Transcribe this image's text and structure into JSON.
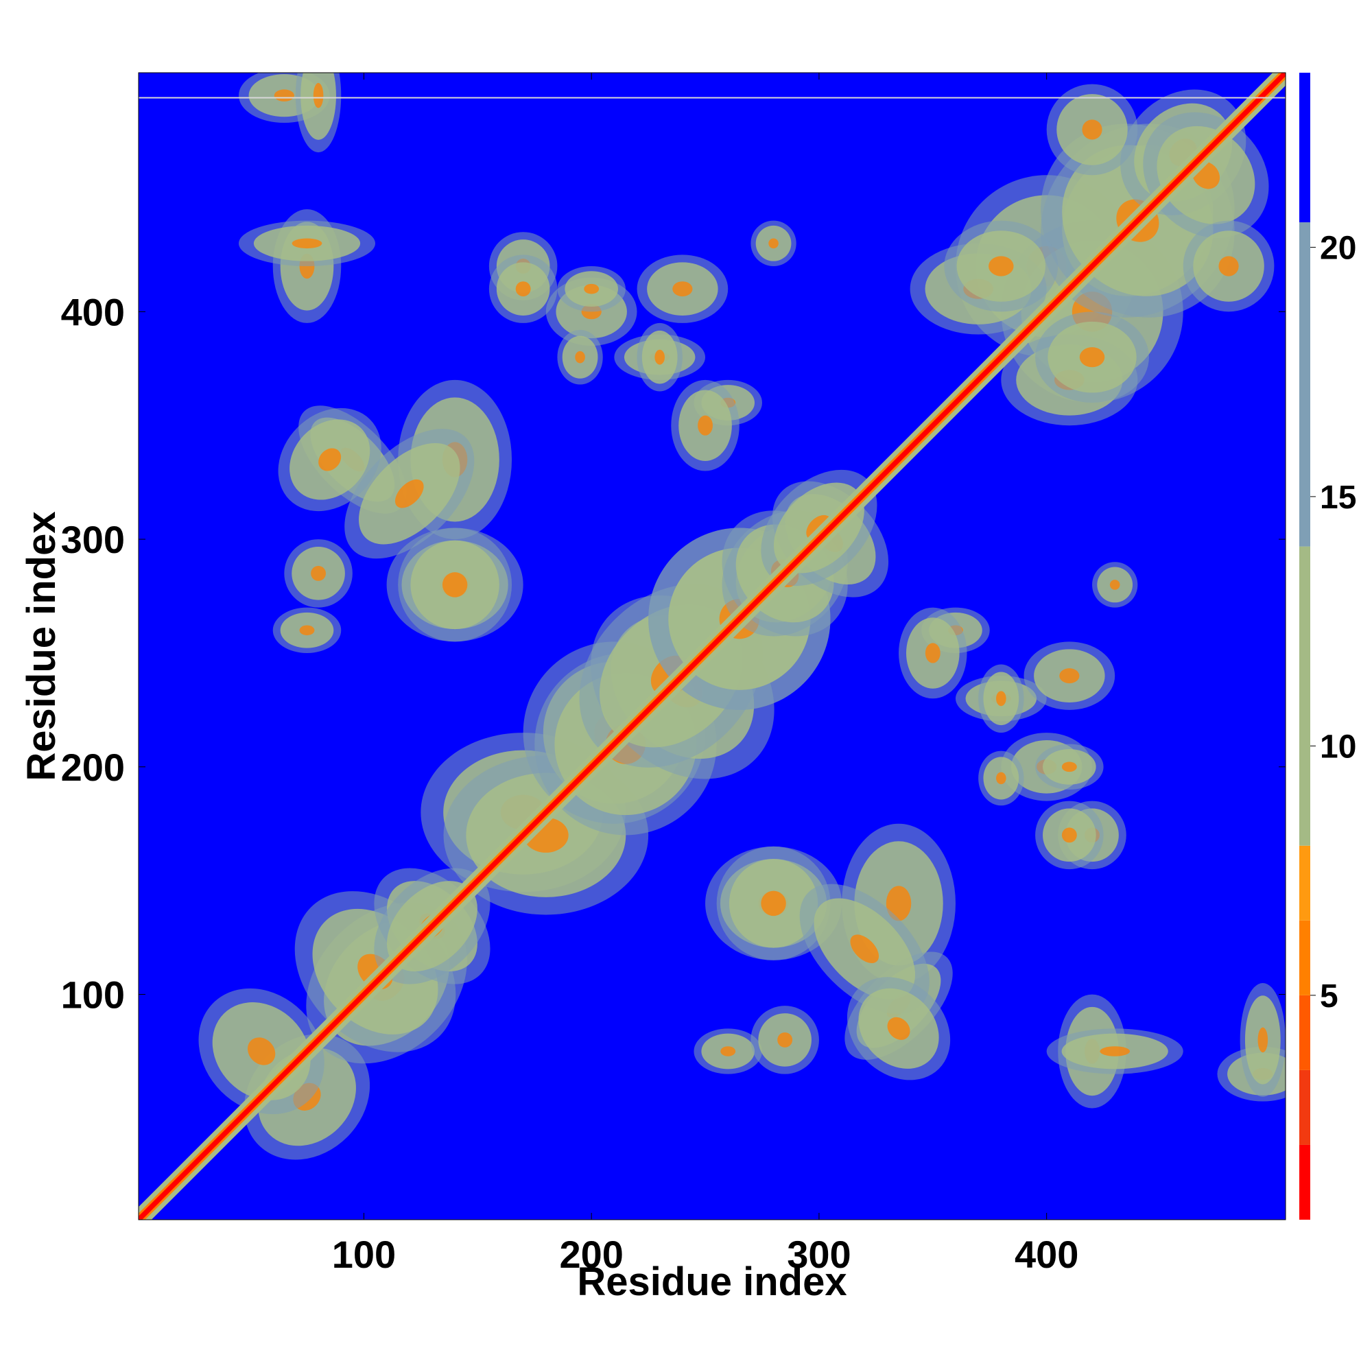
{
  "chart_data": {
    "type": "heatmap",
    "title": "",
    "xlabel": "Residue index",
    "ylabel": "Residue index",
    "xlim": [
      1,
      505
    ],
    "ylim": [
      1,
      505
    ],
    "x_ticks": [
      100,
      200,
      300,
      400
    ],
    "y_ticks": [
      100,
      200,
      300,
      400
    ],
    "colorbar": {
      "ticks": [
        5,
        10,
        15,
        20
      ],
      "range": [
        0.5,
        23.5
      ],
      "levels": [
        {
          "lo": 0.5,
          "hi": 2.0,
          "color": "#ff0000"
        },
        {
          "lo": 2.0,
          "hi": 3.5,
          "color": "#f23a10"
        },
        {
          "lo": 3.5,
          "hi": 5.0,
          "color": "#ff5a00"
        },
        {
          "lo": 5.0,
          "hi": 6.5,
          "color": "#ff8000"
        },
        {
          "lo": 6.5,
          "hi": 8.0,
          "color": "#ff9a10"
        },
        {
          "lo": 8.0,
          "hi": 14.0,
          "color": "#a4ba85"
        },
        {
          "lo": 14.0,
          "hi": 20.5,
          "color": "#7f9fb5"
        },
        {
          "lo": 20.5,
          "hi": 23.5,
          "color": "#0000ff"
        }
      ]
    },
    "background_color": "#0000ff",
    "diagonal_color": "#ff0000",
    "contact_color": "#a7bd88",
    "note_lines": [
      {
        "y": 494
      }
    ],
    "contact_blobs": [
      {
        "x": 75,
        "y": 55,
        "rx": 30,
        "ry": 25,
        "angle": -45
      },
      {
        "x": 110,
        "y": 105,
        "rx": 40,
        "ry": 30,
        "angle": -45
      },
      {
        "x": 130,
        "y": 130,
        "rx": 30,
        "ry": 20,
        "angle": 45
      },
      {
        "x": 170,
        "y": 180,
        "rx": 45,
        "ry": 35,
        "angle": 0
      },
      {
        "x": 210,
        "y": 215,
        "rx": 40,
        "ry": 40,
        "angle": 0
      },
      {
        "x": 240,
        "y": 235,
        "rx": 45,
        "ry": 35,
        "angle": 45
      },
      {
        "x": 265,
        "y": 265,
        "rx": 40,
        "ry": 40,
        "angle": 0
      },
      {
        "x": 285,
        "y": 285,
        "rx": 30,
        "ry": 25,
        "angle": -45
      },
      {
        "x": 305,
        "y": 300,
        "rx": 30,
        "ry": 20,
        "angle": 45
      },
      {
        "x": 335,
        "y": 140,
        "rx": 25,
        "ry": 35,
        "angle": 0
      },
      {
        "x": 335,
        "y": 95,
        "rx": 30,
        "ry": 15,
        "angle": -45
      },
      {
        "x": 280,
        "y": 140,
        "rx": 30,
        "ry": 25,
        "angle": 0
      },
      {
        "x": 140,
        "y": 280,
        "rx": 25,
        "ry": 25,
        "angle": 0
      },
      {
        "x": 120,
        "y": 320,
        "rx": 35,
        "ry": 20,
        "angle": -45
      },
      {
        "x": 85,
        "y": 335,
        "rx": 25,
        "ry": 20,
        "angle": -45
      },
      {
        "x": 75,
        "y": 420,
        "rx": 15,
        "ry": 25,
        "angle": 0
      },
      {
        "x": 65,
        "y": 495,
        "rx": 20,
        "ry": 12,
        "angle": 0
      },
      {
        "x": 400,
        "y": 420,
        "rx": 40,
        "ry": 40,
        "angle": 0
      },
      {
        "x": 440,
        "y": 440,
        "rx": 40,
        "ry": 45,
        "angle": 45
      },
      {
        "x": 460,
        "y": 470,
        "rx": 30,
        "ry": 25,
        "angle": -45
      },
      {
        "x": 370,
        "y": 410,
        "rx": 30,
        "ry": 20,
        "angle": 0
      },
      {
        "x": 420,
        "y": 380,
        "rx": 25,
        "ry": 20,
        "angle": 0
      },
      {
        "x": 480,
        "y": 420,
        "rx": 20,
        "ry": 20,
        "angle": 0
      },
      {
        "x": 430,
        "y": 75,
        "rx": 30,
        "ry": 10,
        "angle": 0
      },
      {
        "x": 400,
        "y": 200,
        "rx": 20,
        "ry": 15,
        "angle": 0
      },
      {
        "x": 380,
        "y": 230,
        "rx": 20,
        "ry": 10,
        "angle": 0
      },
      {
        "x": 420,
        "y": 170,
        "rx": 15,
        "ry": 15,
        "angle": 0
      },
      {
        "x": 360,
        "y": 260,
        "rx": 15,
        "ry": 10,
        "angle": 0
      },
      {
        "x": 495,
        "y": 80,
        "rx": 10,
        "ry": 25,
        "angle": 0
      },
      {
        "x": 250,
        "y": 350,
        "rx": 15,
        "ry": 20,
        "angle": 0
      },
      {
        "x": 240,
        "y": 410,
        "rx": 20,
        "ry": 15,
        "angle": 0
      },
      {
        "x": 200,
        "y": 410,
        "rx": 15,
        "ry": 10,
        "angle": 0
      },
      {
        "x": 170,
        "y": 410,
        "rx": 15,
        "ry": 15,
        "angle": 0
      },
      {
        "x": 280,
        "y": 430,
        "rx": 10,
        "ry": 10,
        "angle": 0
      },
      {
        "x": 195,
        "y": 380,
        "rx": 10,
        "ry": 12,
        "angle": 0
      },
      {
        "x": 230,
        "y": 380,
        "rx": 10,
        "ry": 15,
        "angle": 0
      },
      {
        "x": 260,
        "y": 75,
        "rx": 15,
        "ry": 10,
        "angle": 0
      },
      {
        "x": 285,
        "y": 80,
        "rx": 15,
        "ry": 15,
        "angle": 0
      }
    ]
  }
}
